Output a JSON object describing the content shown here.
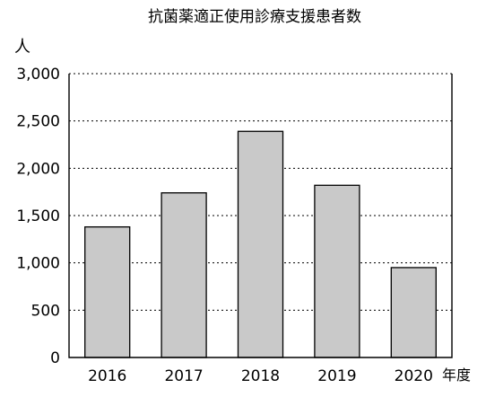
{
  "chart_data": {
    "type": "bar",
    "title": "抗菌薬適正使用診療支援患者数",
    "ylabel": "人",
    "xlabel": "年度",
    "categories": [
      "2016",
      "2017",
      "2018",
      "2019",
      "2020"
    ],
    "values": [
      1380,
      1740,
      2390,
      1820,
      950
    ],
    "ylim": [
      0,
      3000
    ],
    "yticks": [
      0,
      500,
      1000,
      1500,
      2000,
      2500,
      3000
    ],
    "ytick_labels": [
      "0",
      "500",
      "1,000",
      "1,500",
      "2,000",
      "2,500",
      "3,000"
    ],
    "grid": true,
    "legend": "none",
    "colors": {
      "bar_fill": "#c9c9c9",
      "bar_stroke": "#000000"
    }
  }
}
